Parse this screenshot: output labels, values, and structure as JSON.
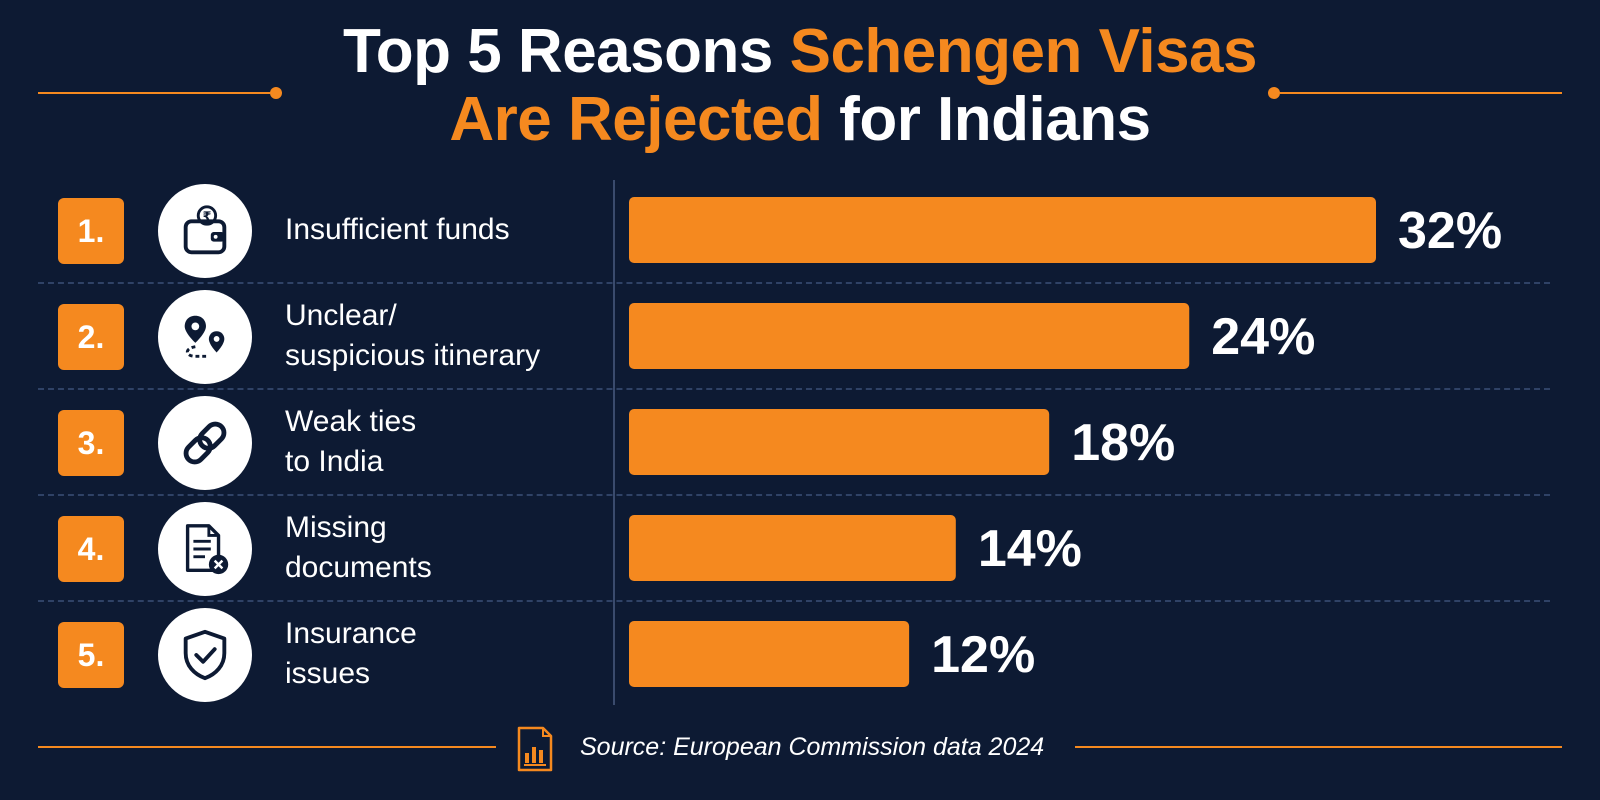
{
  "title": {
    "part1": "Top 5 Reasons ",
    "part2_accent": "Schengen Visas",
    "part3_accent": "Are Rejected",
    "part4": " for Indians"
  },
  "rows": [
    {
      "rank": "1.",
      "label_line1": "Insufficient funds",
      "label_line2": "",
      "icon": "wallet-rupee-icon"
    },
    {
      "rank": "2.",
      "label_line1": "Unclear/",
      "label_line2": "suspicious itinerary",
      "icon": "route-pins-icon"
    },
    {
      "rank": "3.",
      "label_line1": "Weak ties",
      "label_line2": "to India",
      "icon": "chain-link-icon"
    },
    {
      "rank": "4.",
      "label_line1": "Missing",
      "label_line2": "documents",
      "icon": "document-error-icon"
    },
    {
      "rank": "5.",
      "label_line1": "Insurance",
      "label_line2": "issues",
      "icon": "shield-check-icon"
    }
  ],
  "chart_data": {
    "type": "bar",
    "orientation": "horizontal",
    "categories": [
      "Insufficient funds",
      "Unclear/suspicious itinerary",
      "Weak ties to India",
      "Missing documents",
      "Insurance issues"
    ],
    "values": [
      32,
      24,
      18,
      14,
      12
    ],
    "data_labels": [
      "32%",
      "24%",
      "18%",
      "14%",
      "12%"
    ],
    "unit": "%",
    "xlim": [
      0,
      32
    ],
    "grid": false,
    "legend": "none"
  },
  "footer": {
    "source": "Source: European Commission data 2024",
    "icon": "report-chart-icon"
  },
  "colors": {
    "background": "#0d1a33",
    "accent": "#f5891f",
    "text": "#ffffff"
  }
}
